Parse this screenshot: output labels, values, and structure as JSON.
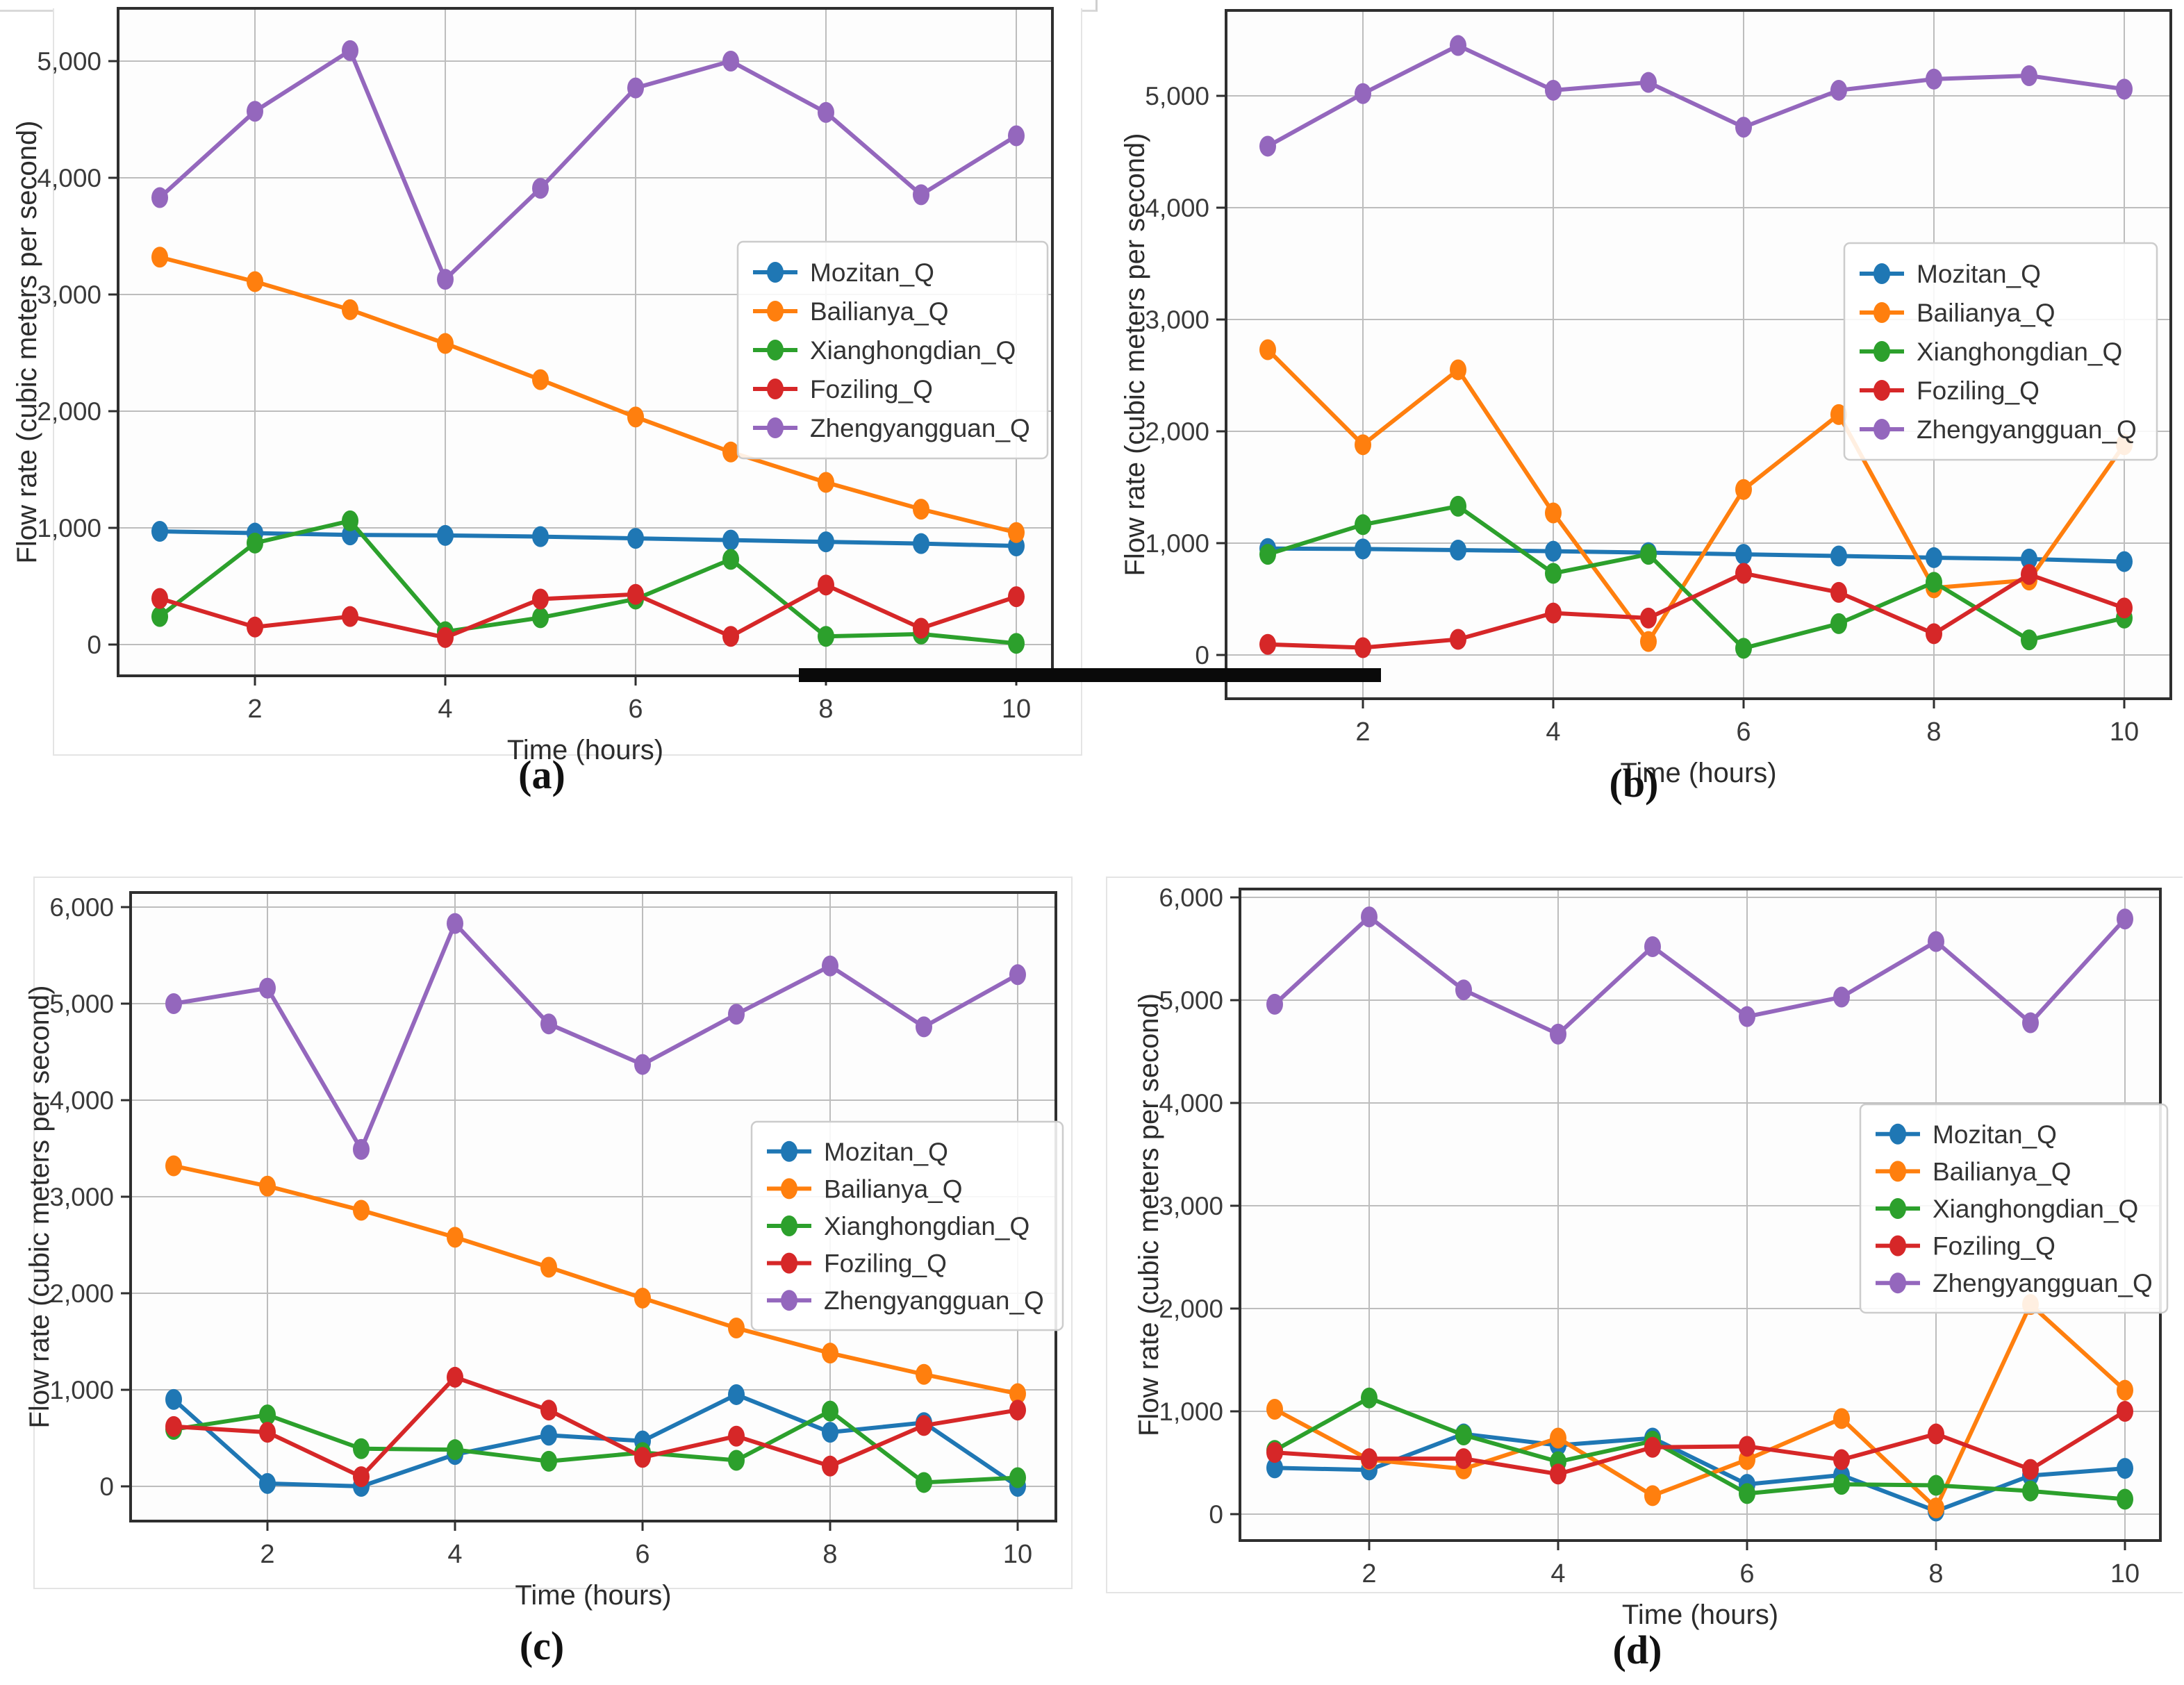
{
  "figure": {
    "xlabel": "Time (hours)",
    "ylabel": "Flow rate (cubic meters per second)",
    "colors": {
      "Mozitan_Q": "#1f77b4",
      "Bailianya_Q": "#ff7f0e",
      "Xianghongdian_Q": "#2ca02c",
      "Foziling_Q": "#d62728",
      "Zhengyangguan_Q": "#9467bd"
    },
    "grid_color": "#bdbdbd",
    "spine_color": "#2f2f2f",
    "text_color": "#3a3a3a"
  },
  "chart_data": [
    {
      "id": "a",
      "type": "line",
      "title": "(a)",
      "xlabel": "Time (hours)",
      "ylabel": "Flow rate (cubic meters per second)",
      "x": [
        1,
        2,
        3,
        4,
        5,
        6,
        7,
        8,
        9,
        10
      ],
      "xticks": [
        2,
        4,
        6,
        8,
        10
      ],
      "xtick_labels": [
        "2",
        "4",
        "6",
        "8",
        "10"
      ],
      "yticks": [
        0,
        1000,
        2000,
        3000,
        4000,
        5000
      ],
      "ytick_labels": [
        "0",
        "1,000",
        "2,000",
        "3,000",
        "4,000",
        "5,000"
      ],
      "grid": true,
      "legend_position": "center-right",
      "series": [
        {
          "name": "Mozitan_Q",
          "color": "#1f77b4",
          "values": [
            970,
            955,
            940,
            935,
            925,
            910,
            895,
            880,
            865,
            845
          ]
        },
        {
          "name": "Bailianya_Q",
          "color": "#ff7f0e",
          "values": [
            3320,
            3110,
            2870,
            2580,
            2270,
            1950,
            1650,
            1390,
            1160,
            960
          ]
        },
        {
          "name": "Xianghongdian_Q",
          "color": "#2ca02c",
          "values": [
            240,
            870,
            1060,
            110,
            230,
            390,
            730,
            70,
            90,
            10
          ]
        },
        {
          "name": "Foziling_Q",
          "color": "#d62728",
          "values": [
            395,
            150,
            240,
            60,
            390,
            430,
            70,
            510,
            140,
            410
          ]
        },
        {
          "name": "Zhengyangguan_Q",
          "color": "#9467bd",
          "values": [
            3830,
            4570,
            5090,
            3130,
            3910,
            4770,
            5000,
            4560,
            3855,
            4360
          ]
        }
      ]
    },
    {
      "id": "b",
      "type": "line",
      "title": "(b)",
      "xlabel": "Time (hours)",
      "ylabel": "Flow rate (cubic meters per second)",
      "x": [
        1,
        2,
        3,
        4,
        5,
        6,
        7,
        8,
        9,
        10
      ],
      "xticks": [
        2,
        4,
        6,
        8,
        10
      ],
      "xtick_labels": [
        "2",
        "4",
        "6",
        "8",
        "10"
      ],
      "yticks": [
        0,
        1000,
        2000,
        3000,
        4000,
        5000
      ],
      "ytick_labels": [
        "0",
        "1,000",
        "2,000",
        "3,000",
        "4,000",
        "5,000"
      ],
      "grid": true,
      "legend_position": "center-right",
      "series": [
        {
          "name": "Mozitan_Q",
          "color": "#1f77b4",
          "values": [
            952,
            948,
            938,
            928,
            915,
            900,
            885,
            870,
            858,
            835
          ]
        },
        {
          "name": "Bailianya_Q",
          "color": "#ff7f0e",
          "values": [
            2730,
            1880,
            2550,
            1270,
            120,
            1480,
            2150,
            600,
            670,
            1880
          ]
        },
        {
          "name": "Xianghongdian_Q",
          "color": "#2ca02c",
          "values": [
            900,
            1165,
            1330,
            730,
            900,
            60,
            280,
            650,
            135,
            330
          ]
        },
        {
          "name": "Foziling_Q",
          "color": "#d62728",
          "values": [
            95,
            65,
            140,
            375,
            330,
            730,
            560,
            190,
            720,
            420
          ]
        },
        {
          "name": "Zhengyangguan_Q",
          "color": "#9467bd",
          "values": [
            4550,
            5020,
            5450,
            5050,
            5120,
            4720,
            5050,
            5150,
            5180,
            5060
          ]
        }
      ]
    },
    {
      "id": "c",
      "type": "line",
      "title": "(c)",
      "xlabel": "Time (hours)",
      "ylabel": "Flow rate (cubic meters per second)",
      "x": [
        1,
        2,
        3,
        4,
        5,
        6,
        7,
        8,
        9,
        10
      ],
      "xticks": [
        2,
        4,
        6,
        8,
        10
      ],
      "xtick_labels": [
        "2",
        "4",
        "6",
        "8",
        "10"
      ],
      "yticks": [
        0,
        1000,
        2000,
        3000,
        4000,
        5000,
        6000
      ],
      "ytick_labels": [
        "0",
        "1,000",
        "2,000",
        "3,000",
        "4,000",
        "5,000",
        "6,000"
      ],
      "grid": true,
      "legend_position": "bottom-right",
      "series": [
        {
          "name": "Mozitan_Q",
          "color": "#1f77b4",
          "values": [
            900,
            30,
            0,
            330,
            530,
            470,
            950,
            560,
            660,
            0
          ]
        },
        {
          "name": "Bailianya_Q",
          "color": "#ff7f0e",
          "values": [
            3320,
            3110,
            2860,
            2580,
            2270,
            1950,
            1640,
            1380,
            1160,
            960
          ]
        },
        {
          "name": "Xianghongdian_Q",
          "color": "#2ca02c",
          "values": [
            590,
            740,
            390,
            380,
            260,
            350,
            270,
            780,
            40,
            90
          ]
        },
        {
          "name": "Foziling_Q",
          "color": "#d62728",
          "values": [
            620,
            560,
            100,
            1130,
            790,
            300,
            520,
            210,
            630,
            790
          ]
        },
        {
          "name": "Zhengyangguan_Q",
          "color": "#9467bd",
          "values": [
            5000,
            5160,
            3490,
            5830,
            4790,
            4370,
            4890,
            5390,
            4760,
            5300
          ]
        }
      ]
    },
    {
      "id": "d",
      "type": "line",
      "title": "(d)",
      "xlabel": "Time (hours)",
      "ylabel": "Flow rate (cubic meters per second)",
      "x": [
        1,
        2,
        3,
        4,
        5,
        6,
        7,
        8,
        9,
        10
      ],
      "xticks": [
        2,
        4,
        6,
        8,
        10
      ],
      "xtick_labels": [
        "2",
        "4",
        "6",
        "8",
        "10"
      ],
      "yticks": [
        0,
        1000,
        2000,
        3000,
        4000,
        5000,
        6000
      ],
      "ytick_labels": [
        "0",
        "1,000",
        "2,000",
        "3,000",
        "4,000",
        "5,000",
        "6,000"
      ],
      "grid": true,
      "legend_position": "center-right",
      "series": [
        {
          "name": "Mozitan_Q",
          "color": "#1f77b4",
          "values": [
            450,
            430,
            780,
            670,
            740,
            290,
            380,
            30,
            375,
            445
          ]
        },
        {
          "name": "Bailianya_Q",
          "color": "#ff7f0e",
          "values": [
            1020,
            530,
            440,
            740,
            180,
            530,
            930,
            60,
            2040,
            1205
          ]
        },
        {
          "name": "Xianghongdian_Q",
          "color": "#2ca02c",
          "values": [
            620,
            1130,
            770,
            510,
            710,
            200,
            290,
            280,
            225,
            145
          ]
        },
        {
          "name": "Foziling_Q",
          "color": "#d62728",
          "values": [
            600,
            540,
            540,
            390,
            650,
            660,
            530,
            780,
            435,
            1000
          ]
        },
        {
          "name": "Zhengyangguan_Q",
          "color": "#9467bd",
          "values": [
            4960,
            5810,
            5100,
            4670,
            5520,
            4840,
            5030,
            5570,
            4780,
            5790
          ]
        }
      ]
    }
  ]
}
